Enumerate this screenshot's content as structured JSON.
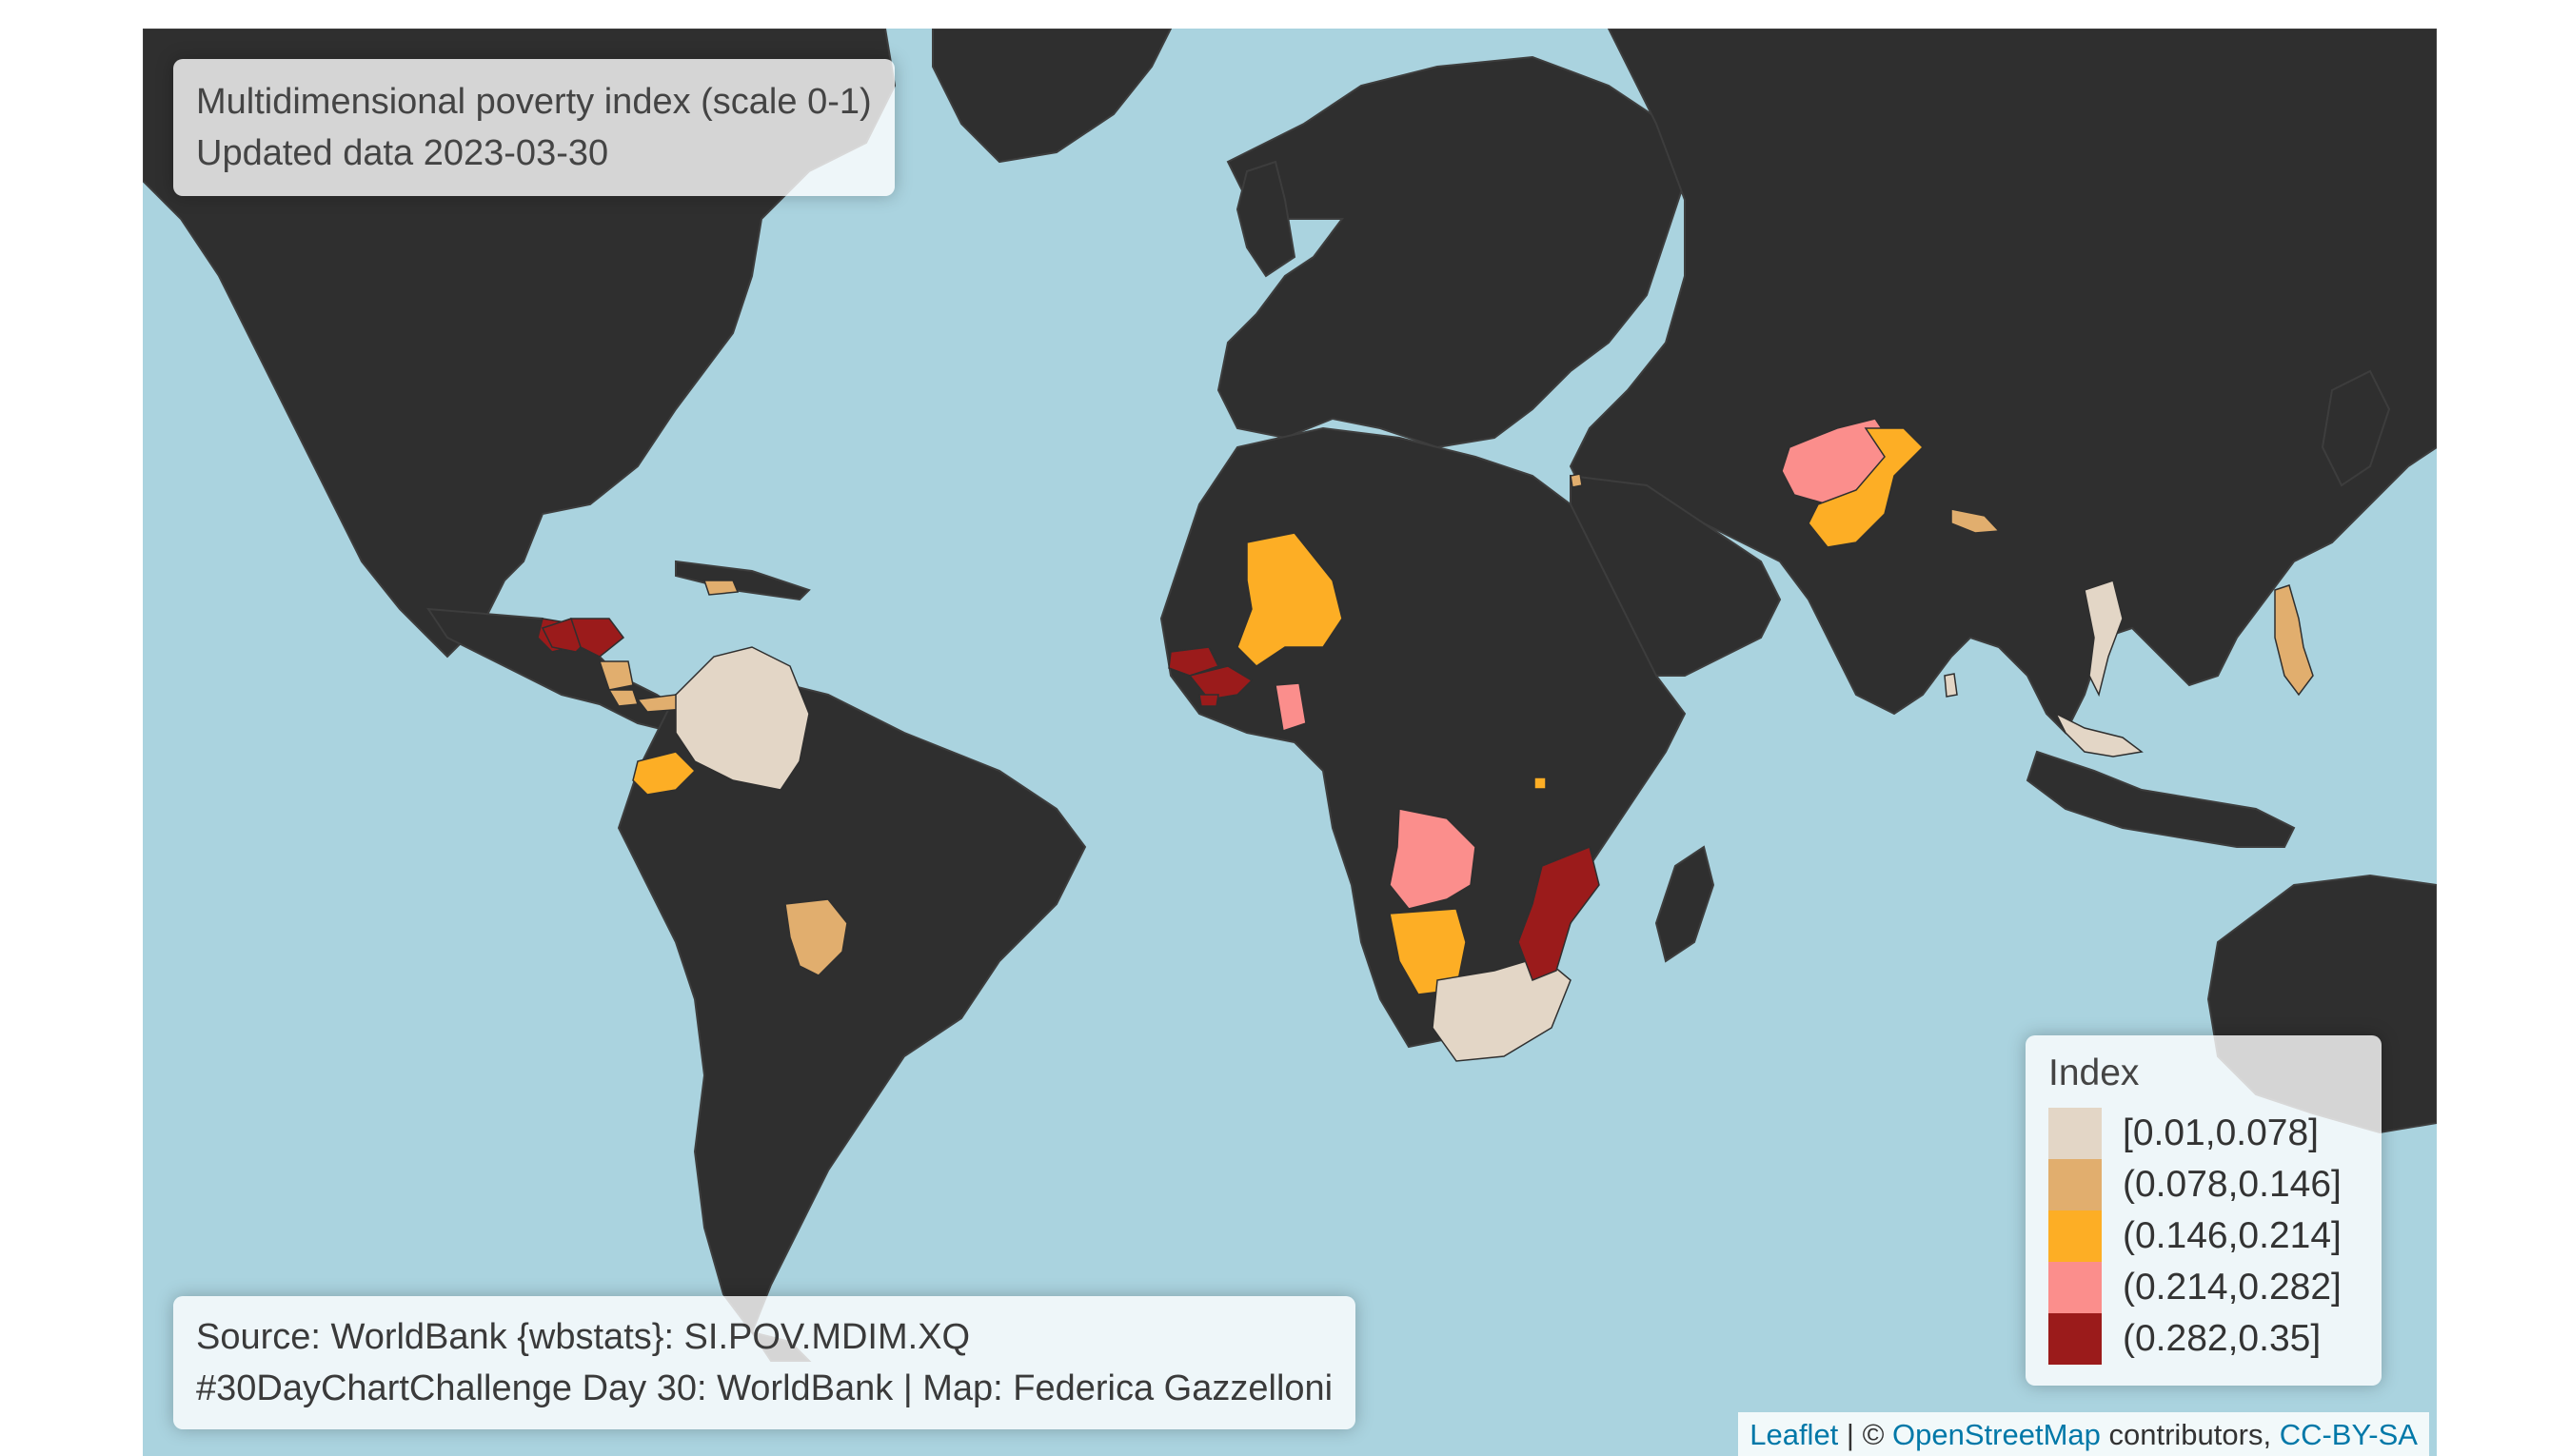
{
  "title_panel": {
    "line1": "Multidimensional poverty index (scale 0-1)",
    "line2": "Updated data 2023-03-30"
  },
  "source_panel": {
    "line1": "Source: WorldBank {wbstats}: SI.POV.MDIM.XQ",
    "line2": "#30DayChartChallenge Day 30: WorldBank | Map: Federica Gazzelloni"
  },
  "legend": {
    "title": "Index",
    "items": [
      {
        "label": "[0.01,0.078]",
        "color": "#e3d6c6"
      },
      {
        "label": "(0.078,0.146]",
        "color": "#e1ae6e"
      },
      {
        "label": "(0.146,0.214]",
        "color": "#fdae25"
      },
      {
        "label": "(0.214,0.282]",
        "color": "#fb8e8c"
      },
      {
        "label": "(0.282,0.35]",
        "color": "#9b1b1b"
      }
    ]
  },
  "attribution": {
    "leaflet": "Leaflet",
    "separator": " | © ",
    "osm": "OpenStreetMap",
    "contributors": " contributors, ",
    "license": "CC-BY-SA"
  },
  "colors": {
    "ocean": "#aad3df",
    "land": "#2f2f2f"
  },
  "countries": [
    {
      "name": "Mexico",
      "class": 4
    },
    {
      "name": "Guatemala",
      "class": 4
    },
    {
      "name": "Honduras",
      "class": 4
    },
    {
      "name": "Nicaragua",
      "class": 1
    },
    {
      "name": "Costa Rica",
      "class": 1
    },
    {
      "name": "Panama",
      "class": 1
    },
    {
      "name": "Colombia",
      "class": 0
    },
    {
      "name": "Ecuador",
      "class": 2
    },
    {
      "name": "Paraguay",
      "class": 1
    },
    {
      "name": "Dominican Republic",
      "class": 1
    },
    {
      "name": "Mali",
      "class": 2
    },
    {
      "name": "Senegal",
      "class": 4
    },
    {
      "name": "Guinea",
      "class": 4
    },
    {
      "name": "Sierra Leone",
      "class": 4
    },
    {
      "name": "Ghana",
      "class": 3
    },
    {
      "name": "Angola",
      "class": 3
    },
    {
      "name": "Namibia",
      "class": 2
    },
    {
      "name": "South Africa",
      "class": 0
    },
    {
      "name": "Mozambique",
      "class": 4
    },
    {
      "name": "Rwanda",
      "class": 2
    },
    {
      "name": "Afghanistan",
      "class": 3
    },
    {
      "name": "Pakistan",
      "class": 2
    },
    {
      "name": "Nepal",
      "class": 1
    },
    {
      "name": "Thailand",
      "class": 0
    },
    {
      "name": "Philippines",
      "class": 1
    },
    {
      "name": "Indonesia",
      "class": 0
    },
    {
      "name": "Sri Lanka",
      "class": 0
    },
    {
      "name": "Jordan",
      "class": 1
    }
  ]
}
